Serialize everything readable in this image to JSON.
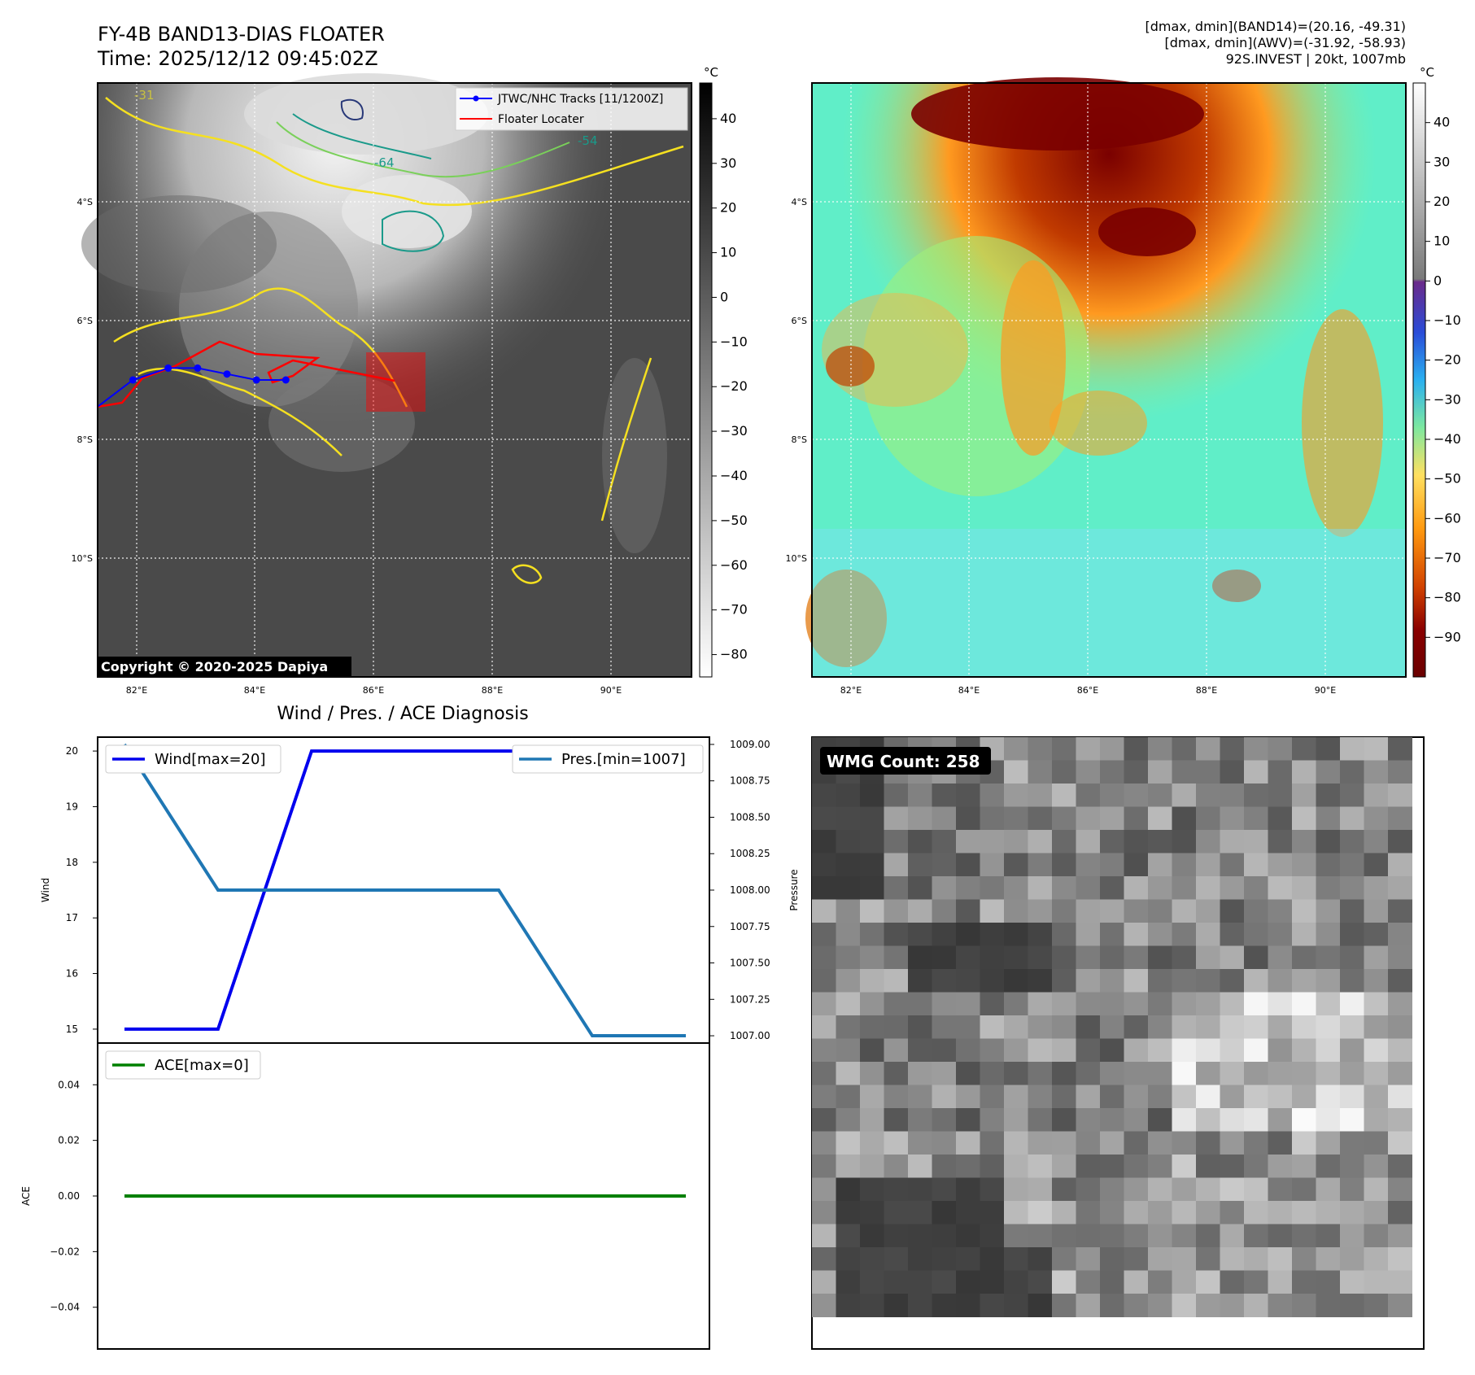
{
  "header": {
    "title": "FY-4B BAND13-DIAS FLOATER",
    "time": "Time: 2025/12/12 09:45:02Z",
    "info_line1": "[dmax, dmin](BAND14)=(20.16, -49.31)",
    "info_line2": "[dmax, dmin](AWV)=(-31.92, -58.93)",
    "info_line3": "92S.INVEST | 20kt, 1007mb",
    "copyright": "Copyright © 2020-2025 Dapiya"
  },
  "colors": {
    "track_jtwc": "#0000ff",
    "floater": "#ff0000",
    "wind_line": "#0000ee",
    "pres_line": "#1f77b4",
    "ace_line": "#008000",
    "contour_yellow": "#f5e020",
    "contour_green": "#7ad05a",
    "contour_teal": "#1a9a8a",
    "contour_navy": "#283878"
  },
  "chart_data": [
    {
      "type": "heatmap",
      "name": "FY-4B BAND13 IR satellite image",
      "title": "FY-4B BAND13-DIAS FLOATER",
      "x_ticks": [
        "82°E",
        "84°E",
        "86°E",
        "88°E",
        "90°E"
      ],
      "y_ticks": [
        "4°S",
        "6°S",
        "8°S",
        "10°S"
      ],
      "xlim": [
        81.3,
        91.4
      ],
      "ylim": [
        -12.0,
        -2.0
      ],
      "colorbar": {
        "unit": "°C",
        "ticks": [
          40,
          30,
          20,
          10,
          0,
          -10,
          -20,
          -30,
          -40,
          -50,
          -60,
          -70,
          -80
        ],
        "range": [
          -85,
          48
        ]
      },
      "contour_labels": [
        "-31",
        "-54",
        "-64"
      ],
      "legend": {
        "entries": [
          "JTWC/NHC Tracks [11/1200Z]",
          "Floater Locater"
        ],
        "position": "top-right"
      },
      "track_jtwc": {
        "lon": [
          81.3,
          81.9,
          82.5,
          83.0,
          83.5,
          84.0,
          84.5
        ],
        "lat": [
          -7.45,
          -7.0,
          -6.8,
          -6.8,
          -6.9,
          -7.0,
          -7.0
        ]
      },
      "floater_box": {
        "lon": [
          85.8,
          86.8
        ],
        "lat": [
          -6.5,
          -7.5
        ]
      },
      "grid": true
    },
    {
      "type": "heatmap",
      "name": "BAND14 enhanced IR image",
      "x_ticks": [
        "82°E",
        "84°E",
        "86°E",
        "88°E",
        "90°E"
      ],
      "y_ticks": [
        "4°S",
        "6°S",
        "8°S",
        "10°S"
      ],
      "xlim": [
        81.3,
        91.4
      ],
      "ylim": [
        -12.0,
        -2.0
      ],
      "colorbar": {
        "unit": "°C",
        "ticks": [
          40,
          30,
          20,
          10,
          0,
          -10,
          -20,
          -30,
          -40,
          -50,
          -60,
          -70,
          -80,
          -90
        ],
        "range": [
          -100,
          50
        ]
      },
      "grid": true
    },
    {
      "type": "line",
      "title": "Wind / Pres. / ACE Diagnosis",
      "x": [
        0,
        1,
        2,
        3,
        4,
        5,
        6
      ],
      "series": [
        {
          "name": "Wind[max=20]",
          "axis": "left",
          "values": [
            15,
            15,
            20,
            20,
            20,
            20,
            20
          ]
        },
        {
          "name": "Pres.[min=1007]",
          "axis": "right",
          "values": [
            1009.0,
            1008.0,
            1008.0,
            1008.0,
            1008.0,
            1007.0,
            1007.0
          ]
        }
      ],
      "ylabel": "Wind",
      "y2label": "Pressure",
      "ylim": [
        14.75,
        20.25
      ],
      "y2lim": [
        1006.95,
        1009.05
      ],
      "yticks": [
        15,
        16,
        17,
        18,
        19,
        20
      ],
      "y2ticks": [
        "1007.00",
        "1007.25",
        "1007.50",
        "1007.75",
        "1008.00",
        "1008.25",
        "1008.50",
        "1008.75",
        "1009.00"
      ],
      "legend_positions": [
        "top-left",
        "top-right"
      ]
    },
    {
      "type": "line",
      "x": [
        0,
        1,
        2,
        3,
        4,
        5,
        6
      ],
      "series": [
        {
          "name": "ACE[max=0]",
          "values": [
            0,
            0,
            0,
            0,
            0,
            0,
            0
          ]
        }
      ],
      "ylabel": "ACE",
      "ylim": [
        -0.055,
        0.055
      ],
      "yticks": [
        "0.04",
        "0.02",
        "0.00",
        "−0.02",
        "−0.04"
      ],
      "legend_position": "top-left"
    },
    {
      "type": "heatmap",
      "name": "WMG grayscale grid",
      "annotation": "WMG Count: 258"
    }
  ]
}
